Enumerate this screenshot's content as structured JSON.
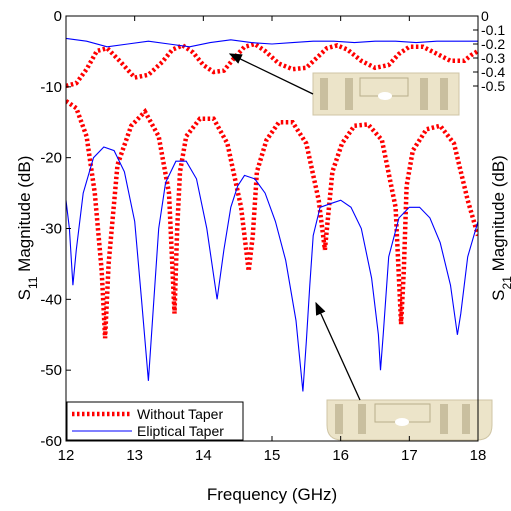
{
  "chart_data": {
    "type": "line",
    "xlabel": "Frequency (GHz)",
    "ylabel_main": "S",
    "ylabel_sub": "11",
    "ylabel_rest": " Magnitude (dB)",
    "y2label_main": "S",
    "y2label_sub": "21",
    "y2label_rest": " Magnitude (dB)",
    "xlim": [
      12,
      18
    ],
    "ylim": [
      -60,
      0
    ],
    "y2lim": [
      -0.5,
      0
    ],
    "xticks": [
      12,
      13,
      14,
      15,
      16,
      17,
      18
    ],
    "yticks": [
      0,
      -10,
      -20,
      -30,
      -40,
      -50,
      -60
    ],
    "y2ticks": [
      0,
      -0.1,
      -0.2,
      -0.3,
      -0.4,
      -0.5
    ],
    "y2ticklabels": [
      "0",
      "-0.1",
      "-0.2",
      "-0.3",
      "-0.4",
      "-0.5"
    ],
    "legend_position": "bottom-left",
    "series": [
      {
        "name": "Without Taper",
        "axis": "left",
        "quantity": "S11",
        "color": "#ff0000",
        "style": "dotted",
        "x": [
          12.0,
          12.15,
          12.3,
          12.42,
          12.52,
          12.57,
          12.62,
          12.75,
          12.95,
          13.15,
          13.35,
          13.5,
          13.58,
          13.62,
          13.66,
          13.75,
          13.95,
          14.15,
          14.35,
          14.55,
          14.66,
          14.72,
          14.78,
          14.92,
          15.1,
          15.3,
          15.5,
          15.68,
          15.77,
          15.82,
          15.88,
          16.02,
          16.2,
          16.4,
          16.6,
          16.8,
          16.88,
          16.92,
          16.96,
          17.05,
          17.25,
          17.45,
          17.65,
          17.85,
          18.0
        ],
        "y": [
          -12,
          -13,
          -17,
          -25,
          -36,
          -45.5,
          -35,
          -21,
          -15.5,
          -13.5,
          -17,
          -25,
          -42,
          -30,
          -22,
          -17,
          -14.5,
          -14.5,
          -18,
          -27,
          -36,
          -31,
          -22,
          -17.5,
          -15,
          -15,
          -18,
          -26,
          -33,
          -28,
          -22,
          -18,
          -15.5,
          -15.3,
          -17.5,
          -27,
          -43.5,
          -36,
          -24,
          -19,
          -16,
          -15.5,
          -18,
          -26,
          -31
        ]
      },
      {
        "name": "Eliptical Taper",
        "axis": "left",
        "quantity": "S11",
        "color": "#0000ff",
        "style": "solid",
        "x": [
          12.0,
          12.05,
          12.1,
          12.15,
          12.25,
          12.4,
          12.55,
          12.7,
          12.85,
          13.0,
          13.1,
          13.2,
          13.28,
          13.35,
          13.45,
          13.6,
          13.75,
          13.9,
          14.05,
          14.2,
          14.3,
          14.4,
          14.5,
          14.6,
          14.75,
          14.9,
          15.05,
          15.2,
          15.35,
          15.45,
          15.5,
          15.55,
          15.6,
          15.7,
          15.85,
          16.0,
          16.15,
          16.3,
          16.45,
          16.55,
          16.58,
          16.62,
          16.7,
          16.85,
          17.0,
          17.15,
          17.3,
          17.45,
          17.6,
          17.7,
          17.75,
          17.85,
          18.0
        ],
        "y": [
          -26,
          -30,
          -38,
          -33,
          -25,
          -20,
          -18.5,
          -19,
          -22,
          -29,
          -40,
          -51.5,
          -40,
          -30,
          -23.5,
          -20.5,
          -20.5,
          -23,
          -30,
          -40,
          -33,
          -27,
          -24,
          -22.5,
          -23,
          -25,
          -29,
          -34.5,
          -43,
          -53,
          -46,
          -38,
          -31,
          -27,
          -26.5,
          -26,
          -27,
          -30,
          -37,
          -45,
          -50,
          -45,
          -34,
          -28.5,
          -27,
          -27,
          -28.5,
          -32,
          -38,
          -45,
          -42,
          -34,
          -29
        ]
      },
      {
        "name": "Without Taper",
        "axis": "right",
        "quantity": "S21",
        "color": "#ff0000",
        "style": "dotted",
        "x": [
          12.0,
          12.15,
          12.3,
          12.45,
          12.6,
          12.8,
          13.0,
          13.2,
          13.4,
          13.55,
          13.7,
          13.85,
          14.0,
          14.15,
          14.3,
          14.45,
          14.6,
          14.75,
          14.9,
          15.1,
          15.3,
          15.5,
          15.65,
          15.8,
          15.95,
          16.1,
          16.3,
          16.5,
          16.7,
          16.85,
          17.0,
          17.2,
          17.4,
          17.6,
          17.8,
          17.9,
          18.0
        ],
        "y": [
          -0.5,
          -0.48,
          -0.38,
          -0.25,
          -0.23,
          -0.33,
          -0.44,
          -0.42,
          -0.33,
          -0.24,
          -0.21,
          -0.26,
          -0.35,
          -0.4,
          -0.39,
          -0.3,
          -0.22,
          -0.2,
          -0.25,
          -0.34,
          -0.38,
          -0.37,
          -0.3,
          -0.23,
          -0.21,
          -0.24,
          -0.32,
          -0.37,
          -0.35,
          -0.27,
          -0.22,
          -0.22,
          -0.27,
          -0.32,
          -0.32,
          -0.28,
          -0.25
        ]
      },
      {
        "name": "Eliptical Taper",
        "axis": "right",
        "quantity": "S21",
        "color": "#0000ff",
        "style": "solid",
        "x": [
          12.0,
          12.3,
          12.6,
          12.9,
          13.2,
          13.5,
          13.8,
          14.1,
          14.4,
          14.7,
          15.0,
          15.3,
          15.6,
          15.9,
          16.2,
          16.5,
          16.8,
          17.1,
          17.4,
          17.7,
          18.0
        ],
        "y": [
          -0.16,
          -0.18,
          -0.22,
          -0.2,
          -0.18,
          -0.2,
          -0.22,
          -0.19,
          -0.17,
          -0.19,
          -0.2,
          -0.19,
          -0.18,
          -0.18,
          -0.19,
          -0.18,
          -0.18,
          -0.19,
          -0.18,
          -0.18,
          -0.18
        ]
      }
    ]
  },
  "legend": {
    "items": [
      {
        "label": "Without Taper",
        "color": "#ff0000",
        "style": "dotted"
      },
      {
        "label": "Eliptical Taper",
        "color": "#0000ff",
        "style": "solid"
      }
    ]
  },
  "annotations": {
    "arrow_color": "#000000",
    "inset_fill": "#ece4c9",
    "inset_detail": "#c9bf9f"
  }
}
